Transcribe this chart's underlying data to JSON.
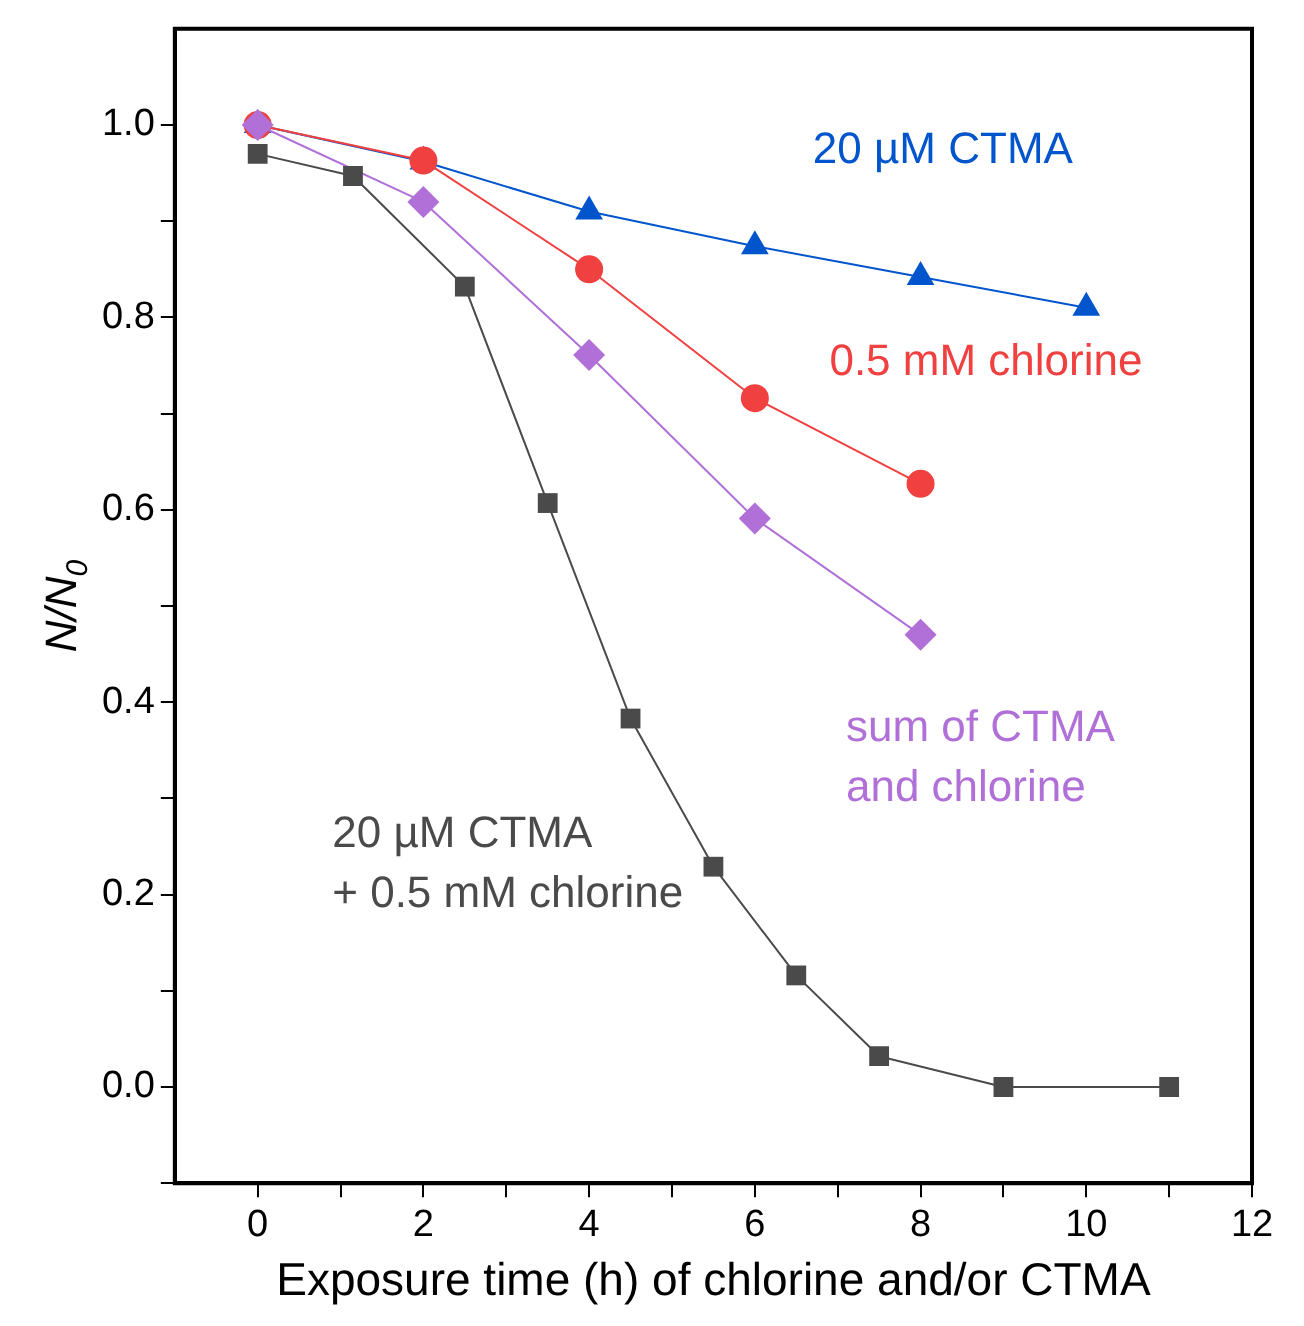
{
  "chart_data": {
    "type": "line",
    "xlabel": "Exposure time (h) of chlorine and/or CTMA",
    "ylabel": "N/N$_{0}$",
    "xlim": [
      -1,
      12
    ],
    "xticks": [
      0,
      {
        "value": 1,
        "label": null
      },
      2,
      {
        "value": 3,
        "label": null
      },
      4,
      {
        "value": 5,
        "label": null
      },
      6,
      {
        "value": 7,
        "label": null
      },
      8,
      {
        "value": 9,
        "label": null
      },
      10,
      {
        "value": 11,
        "label": null
      },
      12
    ],
    "ylim": [
      -0.1,
      1.1
    ],
    "yticks": [
      {
        "value": -0.1,
        "label": null
      },
      "0.0",
      {
        "value": 0.1,
        "label": null
      },
      0.2,
      {
        "value": 0.3,
        "label": null
      },
      0.4,
      {
        "value": 0.5,
        "label": null
      },
      0.6,
      {
        "value": 0.7,
        "label": null
      },
      0.8,
      {
        "value": 0.9,
        "label": null
      },
      "1.0"
    ],
    "grid": false,
    "legend": false,
    "line_style": "solid",
    "series": [
      {
        "name": "20 µM CTMA",
        "color": "#0055cc",
        "marker": "triangle",
        "x": [
          0,
          2,
          4,
          6,
          8,
          10
        ],
        "values": [
          1.0,
          0.962,
          0.91,
          0.874,
          0.842,
          0.81
        ]
      },
      {
        "name": "0.5 mM chlorine",
        "color": "#f04040",
        "marker": "circle",
        "x": [
          0,
          2,
          4,
          6,
          8
        ],
        "values": [
          1.0,
          0.963,
          0.85,
          0.716,
          0.627
        ]
      },
      {
        "name": "sum of CTMA and chlorine",
        "color": "#b070d8",
        "marker": "diamond",
        "x": [
          0,
          2,
          4,
          6,
          8
        ],
        "values": [
          1.0,
          0.92,
          0.761,
          0.591,
          0.47
        ]
      },
      {
        "name": "20 µM CTMA + 0.5 mM chlorine",
        "color": "#4a4a4a",
        "marker": "square",
        "x": [
          0,
          1.15,
          2.5,
          3.5,
          4.5,
          5.5,
          6.5,
          7.5,
          9,
          11
        ],
        "values": [
          0.97,
          0.947,
          0.832,
          0.607,
          0.383,
          0.229,
          0.116,
          0.032,
          0,
          0
        ]
      }
    ]
  }
}
